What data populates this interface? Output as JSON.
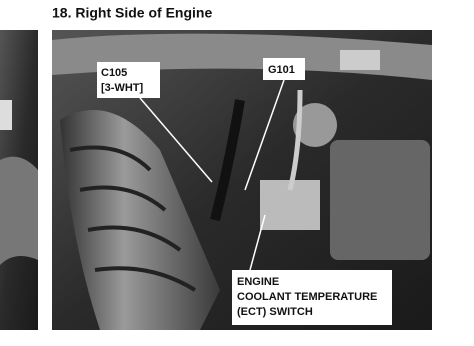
{
  "header": {
    "title": "18. Right Side of Engine"
  },
  "callouts": [
    {
      "lines": [
        "C105",
        "[3-WHT]"
      ]
    },
    {
      "lines": [
        "G101"
      ]
    },
    {
      "lines": [
        "ENGINE",
        "COOLANT TEMPERATURE",
        "(ECT) SWITCH"
      ]
    }
  ]
}
